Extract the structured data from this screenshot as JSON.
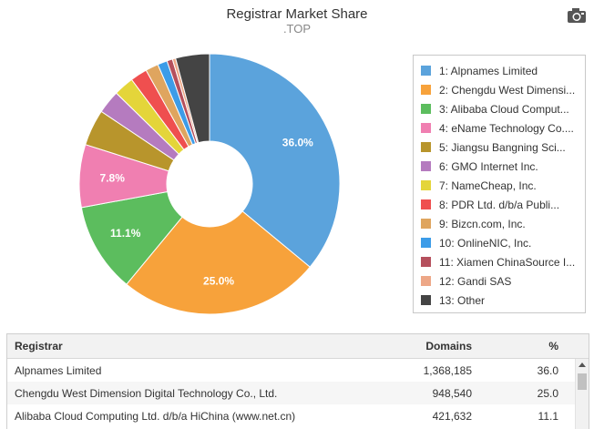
{
  "header": {
    "title": "Registrar Market Share",
    "subtitle": ".TOP"
  },
  "toolbar": {
    "export_icon": "camera-icon"
  },
  "colors": {
    "slices": [
      "#5ba3dc",
      "#f7a23b",
      "#5cbd5e",
      "#f07fb1",
      "#b8952c",
      "#b57bbf",
      "#e4d53a",
      "#ef4f4f",
      "#dfa55f",
      "#3c9ce8",
      "#b5505d",
      "#eda787",
      "#444444"
    ]
  },
  "chart_data": {
    "type": "pie",
    "donut": true,
    "title": "Registrar Market Share",
    "subtitle": ".TOP",
    "legend_position": "right",
    "slices": [
      {
        "legend": "1: Alpnames Limited",
        "value": 36.0,
        "label": "36.0%"
      },
      {
        "legend": "2: Chengdu West Dimensi...",
        "value": 25.0,
        "label": "25.0%"
      },
      {
        "legend": "3: Alibaba Cloud Comput...",
        "value": 11.1,
        "label": "11.1%"
      },
      {
        "legend": "4: eName Technology Co....",
        "value": 7.8,
        "label": "7.8%"
      },
      {
        "legend": "5: Jiangsu Bangning Sci...",
        "value": 4.5,
        "label": ""
      },
      {
        "legend": "6: GMO Internet Inc.",
        "value": 2.9,
        "label": ""
      },
      {
        "legend": "7: NameCheap, Inc.",
        "value": 2.5,
        "label": ""
      },
      {
        "legend": "8: PDR Ltd. d/b/a Publi...",
        "value": 2.1,
        "label": ""
      },
      {
        "legend": "9: Bizcn.com, Inc.",
        "value": 1.6,
        "label": ""
      },
      {
        "legend": "10: OnlineNIC, Inc.",
        "value": 1.2,
        "label": ""
      },
      {
        "legend": "11: Xiamen ChinaSource I...",
        "value": 0.7,
        "label": ""
      },
      {
        "legend": "12: Gandi SAS",
        "value": 0.4,
        "label": ""
      },
      {
        "legend": "13: Other",
        "value": 4.2,
        "label": ""
      }
    ]
  },
  "table": {
    "headers": {
      "registrar": "Registrar",
      "domains": "Domains",
      "percent": "%"
    },
    "rows": [
      {
        "registrar": "Alpnames Limited",
        "domains": "1,368,185",
        "percent": "36.0"
      },
      {
        "registrar": "Chengdu West Dimension Digital Technology Co., Ltd.",
        "domains": "948,540",
        "percent": "25.0"
      },
      {
        "registrar": "Alibaba Cloud Computing Ltd. d/b/a HiChina (www.net.cn)",
        "domains": "421,632",
        "percent": "11.1"
      }
    ]
  }
}
